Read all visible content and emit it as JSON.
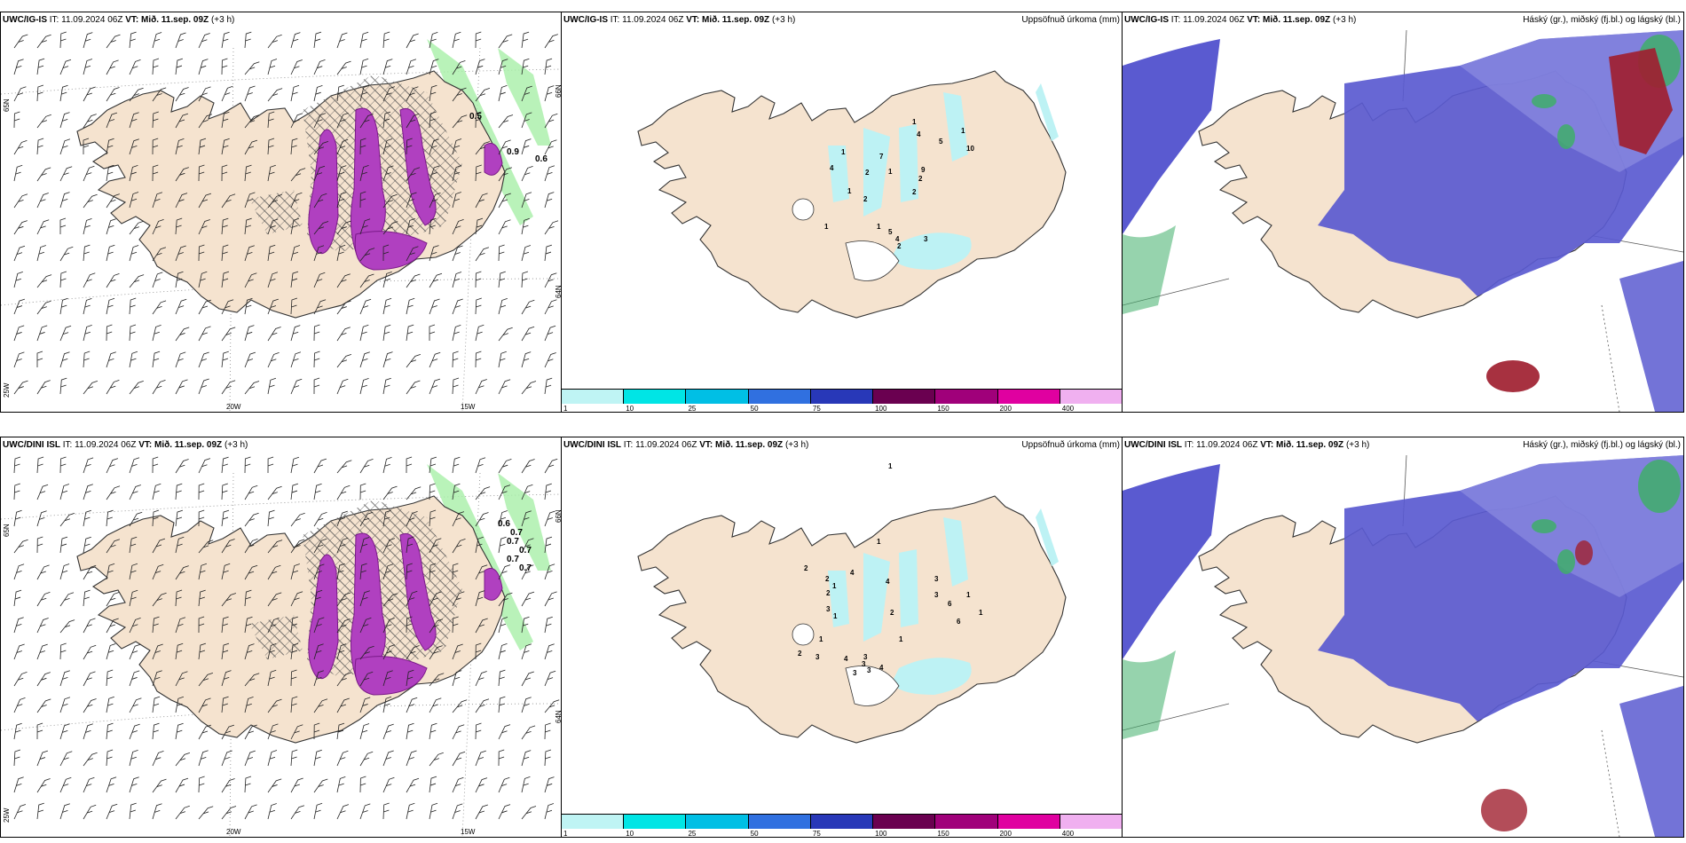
{
  "rows": [
    {
      "model": "UWC/IG-IS",
      "it_label": "IT:",
      "it_value": "11.09.2024 06Z",
      "vt_label": "VT:",
      "vt_value": "Mið. 11.sep. 09Z",
      "lead": "(+3 h)",
      "precip_values": [
        "1",
        "7",
        "4",
        "9",
        "2",
        "1",
        "2",
        "2",
        "1",
        "4",
        "5",
        "10",
        "2",
        "1",
        "1",
        "1",
        "4",
        "3",
        "2",
        "5",
        "1"
      ],
      "wind_numbers": [
        "0.5",
        "0.6",
        "0.9"
      ]
    },
    {
      "model": "UWC/DINI ISL",
      "it_label": "IT:",
      "it_value": "11.09.2024 06Z",
      "vt_label": "VT:",
      "vt_value": "Mið. 11.sep. 09Z",
      "lead": "(+3 h)",
      "precip_values": [
        "1",
        "1",
        "2",
        "3",
        "2",
        "2",
        "4",
        "1",
        "4",
        "3",
        "3",
        "6",
        "2",
        "1",
        "4",
        "3",
        "3",
        "3",
        "4",
        "3",
        "3",
        "2",
        "1",
        "1",
        "6",
        "1",
        "1"
      ],
      "wind_numbers": [
        "0.6",
        "0.7",
        "0.7",
        "0.7",
        "0.7",
        "0.7"
      ]
    }
  ],
  "precip_title": "Uppsöfnuð úrkoma (mm)",
  "cloud_title": "Háský (gr.), miðský (fj.bl.) og lágský (bl.)",
  "colorbar": {
    "labels": [
      "1",
      "10",
      "25",
      "50",
      "75",
      "100",
      "150",
      "200",
      "400"
    ],
    "colors": [
      "#bff4f4",
      "#00e5e5",
      "#00bfe5",
      "#3070e0",
      "#2838b8",
      "#6a0050",
      "#a0007a",
      "#e000a0",
      "#f0b0f0"
    ]
  },
  "axis_labels": {
    "lon_20": "20W",
    "lon_15": "15W",
    "lon_25": "25W",
    "lat_65": "65N",
    "lat_64": "64N",
    "lat_66": "66N"
  },
  "colors": {
    "land": "#f5e3cf",
    "land_dark": "#e8d3bf",
    "cyan": "#bdf2f4",
    "blue": "#5a5ad0",
    "blue_light": "#8a8ae0",
    "green": "#3fae6a",
    "red": "#a02030",
    "magenta": "#b040c0",
    "wind_green": "#a8f0a8"
  }
}
